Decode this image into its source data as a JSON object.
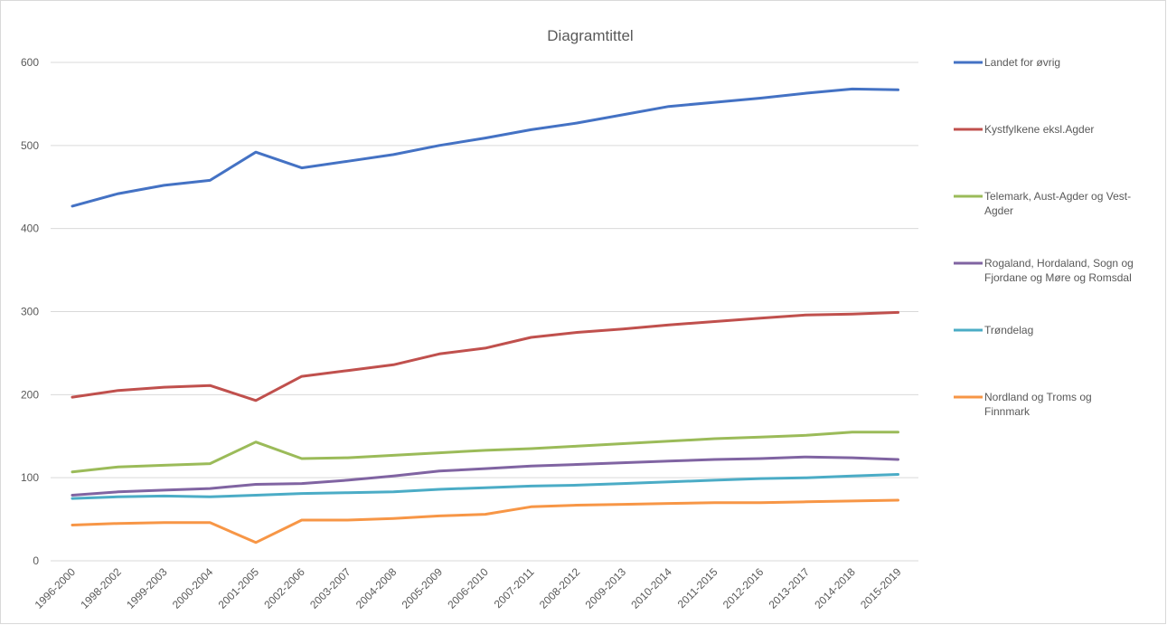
{
  "chart_data": {
    "type": "line",
    "title": "Diagramtittel",
    "xlabel": "",
    "ylabel": "",
    "ylim": [
      0,
      600
    ],
    "yticks": [
      0,
      100,
      200,
      300,
      400,
      500,
      600
    ],
    "grid": true,
    "legend_position": "right",
    "categories": [
      "1996-2000",
      "1998-2002",
      "1999-2003",
      "2000-2004",
      "2001-2005",
      "2002-2006",
      "2003-2007",
      "2004-2008",
      "2005-2009",
      "2006-2010",
      "2007-2011",
      "2008-2012",
      "2009-2013",
      "2010-2014",
      "2011-2015",
      "2012-2016",
      "2013-2017",
      "2014-2018",
      "2015-2019"
    ],
    "series": [
      {
        "name": "Landet for øvrig",
        "color": "#4472c4",
        "legend_lines": [
          "Landet for øvrig"
        ],
        "values": [
          427,
          442,
          452,
          458,
          492,
          473,
          481,
          489,
          500,
          509,
          519,
          527,
          537,
          547,
          552,
          557,
          563,
          568,
          567
        ]
      },
      {
        "name": "Kystfylkene eksl.Agder",
        "color": "#c0504d",
        "legend_lines": [
          "Kystfylkene eksl.Agder"
        ],
        "values": [
          197,
          205,
          209,
          211,
          193,
          222,
          229,
          236,
          249,
          256,
          269,
          275,
          279,
          284,
          288,
          292,
          296,
          297,
          299
        ]
      },
      {
        "name": "Telemark, Aust-Agder og Vest-Agder",
        "color": "#9bbb59",
        "legend_lines": [
          "Telemark, Aust-Agder og Vest-",
          "Agder"
        ],
        "values": [
          107,
          113,
          115,
          117,
          143,
          123,
          124,
          127,
          130,
          133,
          135,
          138,
          141,
          144,
          147,
          149,
          151,
          155,
          155
        ]
      },
      {
        "name": "Rogaland, Hordaland, Sogn og Fjordane og Møre og Romsdal",
        "color": "#8064a2",
        "legend_lines": [
          "Rogaland, Hordaland, Sogn og",
          "Fjordane og Møre og Romsdal"
        ],
        "values": [
          79,
          83,
          85,
          87,
          92,
          93,
          97,
          102,
          108,
          111,
          114,
          116,
          118,
          120,
          122,
          123,
          125,
          124,
          122
        ]
      },
      {
        "name": "Trøndelag",
        "color": "#4bacc6",
        "legend_lines": [
          "Trøndelag"
        ],
        "values": [
          75,
          77,
          78,
          77,
          79,
          81,
          82,
          83,
          86,
          88,
          90,
          91,
          93,
          95,
          97,
          99,
          100,
          102,
          104
        ]
      },
      {
        "name": "Nordland og Troms og Finnmark",
        "color": "#f79646",
        "legend_lines": [
          "Nordland og Troms og",
          "Finnmark"
        ],
        "values": [
          43,
          45,
          46,
          46,
          22,
          49,
          49,
          51,
          54,
          56,
          65,
          67,
          68,
          69,
          70,
          70,
          71,
          72,
          73
        ]
      }
    ]
  }
}
